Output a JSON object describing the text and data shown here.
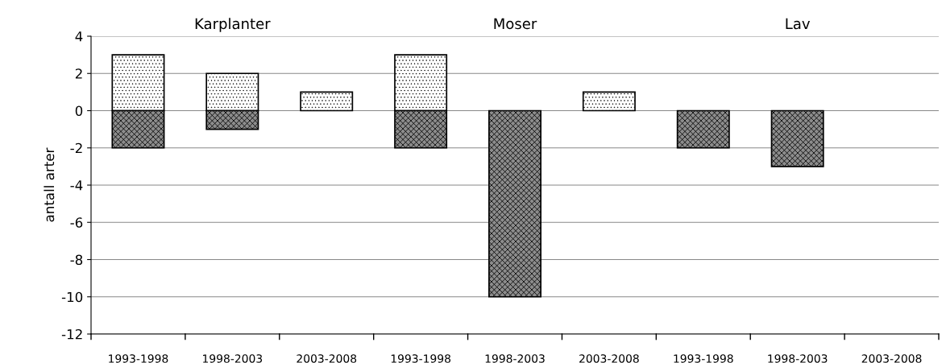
{
  "chart_data": {
    "type": "bar",
    "stacked": true,
    "ylabel": "antall arter",
    "categories": [
      "1993-1998",
      "1998-2003",
      "2003-2008",
      "1993-1998",
      "1998-2003",
      "2003-2008",
      "1993-1998",
      "1998-2003",
      "2003-2008"
    ],
    "series": [
      {
        "color": "#ffffff",
        "values": [
          3,
          2,
          1,
          3,
          null,
          1,
          null,
          null,
          null
        ]
      },
      {
        "color": "#8c8c8c",
        "values": [
          -2,
          -1,
          null,
          -2,
          -10,
          null,
          -2,
          -3,
          null
        ]
      }
    ],
    "ylim": [
      -12,
      4
    ],
    "yticks": [
      -12,
      -10,
      -8,
      -6,
      -4,
      -2,
      0,
      2,
      4
    ],
    "grid": "y",
    "annotations": [
      "Karplanter",
      "Moser",
      "Lav"
    ]
  }
}
